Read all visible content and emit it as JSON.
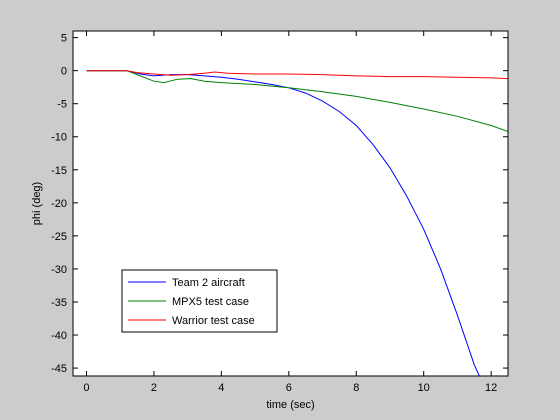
{
  "chart_data": {
    "type": "line",
    "title": "",
    "xlabel": "time (sec)",
    "ylabel": "phi (deg)",
    "xlim": [
      -0.4,
      12.5
    ],
    "ylim": [
      -46.2,
      6
    ],
    "xticks": [
      0,
      2,
      4,
      6,
      8,
      10,
      12
    ],
    "yticks": [
      5,
      0,
      -5,
      -10,
      -15,
      -20,
      -25,
      -30,
      -35,
      -40,
      -45
    ],
    "grid": false,
    "legend_position": "bottom-left",
    "series": [
      {
        "name": "Team 2 aircraft",
        "color": "#0000ff",
        "x": [
          0,
          1.2,
          1.6,
          2.0,
          2.5,
          3.0,
          3.5,
          4.0,
          4.5,
          5.0,
          5.5,
          6.0,
          6.5,
          7.0,
          7.5,
          8.0,
          8.5,
          9.0,
          9.5,
          10.0,
          10.5,
          11.0,
          11.5,
          11.65
        ],
        "y": [
          0,
          0,
          -0.5,
          -0.8,
          -0.6,
          -0.6,
          -0.8,
          -1.0,
          -1.3,
          -1.7,
          -2.1,
          -2.6,
          -3.4,
          -4.6,
          -6.2,
          -8.3,
          -11.2,
          -14.7,
          -19.0,
          -24.0,
          -30.0,
          -37.0,
          -44.5,
          -46.2
        ]
      },
      {
        "name": "MPX5 test case",
        "color": "#008000",
        "x": [
          0,
          1.2,
          1.5,
          2.0,
          2.3,
          2.7,
          3.1,
          3.5,
          4.0,
          5.0,
          6.0,
          7.0,
          8.0,
          9.0,
          10.0,
          11.0,
          12.0,
          12.5
        ],
        "y": [
          0,
          0,
          -0.6,
          -1.6,
          -1.8,
          -1.3,
          -1.2,
          -1.6,
          -1.8,
          -2.1,
          -2.6,
          -3.2,
          -3.9,
          -4.8,
          -5.8,
          -6.9,
          -8.3,
          -9.2
        ]
      },
      {
        "name": "Warrior test case",
        "color": "#ff0000",
        "x": [
          0,
          1.2,
          1.5,
          2.0,
          2.5,
          3.0,
          3.5,
          3.8,
          4.2,
          5.0,
          6.0,
          7.0,
          8.0,
          9.0,
          10.0,
          11.0,
          12.0,
          12.5
        ],
        "y": [
          0,
          0,
          -0.3,
          -0.5,
          -0.7,
          -0.6,
          -0.4,
          -0.2,
          -0.4,
          -0.5,
          -0.5,
          -0.6,
          -0.8,
          -0.9,
          -0.9,
          -1.0,
          -1.1,
          -1.2
        ]
      }
    ]
  }
}
